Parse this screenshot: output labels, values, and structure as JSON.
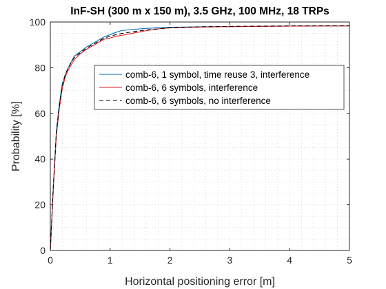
{
  "chart_data": {
    "type": "line",
    "title": "InF-SH (300 m x 150 m), 3.5 GHz, 100 MHz, 18 TRPs",
    "xlabel": "Horizontal positioning error [m]",
    "ylabel": "Probability [%]",
    "xlim": [
      0,
      5
    ],
    "ylim": [
      0,
      100
    ],
    "xticks": [
      0,
      1,
      2,
      3,
      4,
      5
    ],
    "yticks": [
      0,
      20,
      40,
      60,
      80,
      100
    ],
    "grid": "dotted",
    "legend": "center-right",
    "series": [
      {
        "name": "comb-6, 1 symbol, time reuse 3, interference",
        "color": "#0072BD",
        "dash": "solid",
        "x": [
          0,
          0.05,
          0.1,
          0.15,
          0.2,
          0.25,
          0.3,
          0.4,
          0.5,
          0.6,
          0.7,
          0.8,
          0.9,
          1.0,
          1.1,
          1.2,
          1.4,
          1.6,
          1.8,
          2.0,
          2.5,
          3.0,
          3.5,
          4.0,
          5.0
        ],
        "y": [
          0,
          28,
          52,
          64,
          73,
          77,
          80,
          85,
          87,
          89,
          90.5,
          92,
          93.5,
          94.5,
          95.5,
          96.3,
          96.8,
          97.2,
          97.5,
          97.7,
          97.9,
          98.0,
          98.1,
          98.2,
          98.3
        ]
      },
      {
        "name": "comb-6, 6 symbols, interference",
        "color": "#E31A1C",
        "dash": "solid",
        "x": [
          0,
          0.05,
          0.1,
          0.15,
          0.2,
          0.25,
          0.3,
          0.4,
          0.5,
          0.6,
          0.7,
          0.8,
          0.9,
          1.0,
          1.1,
          1.2,
          1.4,
          1.6,
          1.8,
          2.0,
          2.5,
          3.0,
          3.5,
          4.0,
          5.0
        ],
        "y": [
          0,
          27,
          50,
          62,
          71,
          76,
          79,
          83.5,
          86,
          88,
          89.5,
          91,
          92.5,
          93,
          93.8,
          94.2,
          95.2,
          96.2,
          97,
          97.4,
          97.8,
          98.0,
          98.1,
          98.2,
          98.3
        ]
      },
      {
        "name": "comb-6, 6 symbols, no interference",
        "color": "#000000",
        "dash": "dashed",
        "x": [
          0,
          0.05,
          0.1,
          0.15,
          0.2,
          0.25,
          0.3,
          0.4,
          0.5,
          0.6,
          0.7,
          0.8,
          0.9,
          1.0,
          1.1,
          1.2,
          1.4,
          1.6,
          1.8,
          2.0,
          2.5,
          3.0,
          3.5,
          4.0,
          5.0
        ],
        "y": [
          0,
          28,
          51,
          63,
          72,
          77,
          80,
          84.5,
          86.5,
          88.5,
          90,
          91.5,
          93,
          93.8,
          94.5,
          95,
          95.8,
          96.5,
          97,
          97.5,
          97.9,
          98.1,
          98.2,
          98.3,
          98.4
        ]
      }
    ]
  }
}
